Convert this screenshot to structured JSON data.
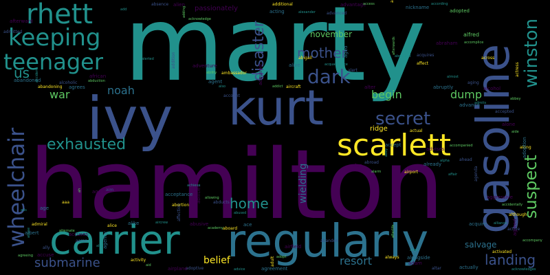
{
  "title": "Word cloud",
  "palette": {
    "background": "#000000",
    "teal": "#21918c",
    "blue": "#3b528b",
    "purple": "#440154",
    "green": "#5ec962",
    "yellow": "#fde725",
    "cyan": "#2c728e"
  },
  "words": [
    {
      "text": "marty"
    },
    {
      "text": "hamilton"
    },
    {
      "text": "ivy"
    },
    {
      "text": "kurt"
    },
    {
      "text": "gasoline"
    },
    {
      "text": "regularly"
    },
    {
      "text": "carrier"
    },
    {
      "text": "scarlett"
    },
    {
      "text": "rhett"
    },
    {
      "text": "keeping"
    },
    {
      "text": "teenager"
    },
    {
      "text": "wheelchair"
    },
    {
      "text": "winston"
    },
    {
      "text": "suspect"
    },
    {
      "text": "exhausted"
    },
    {
      "text": "secret"
    },
    {
      "text": "dark"
    },
    {
      "text": "mother"
    },
    {
      "text": "disaster"
    },
    {
      "text": "landing"
    },
    {
      "text": "submarine"
    },
    {
      "text": "home"
    },
    {
      "text": "us"
    },
    {
      "text": "war"
    },
    {
      "text": "noah"
    },
    {
      "text": "begin"
    },
    {
      "text": "dump"
    },
    {
      "text": "resort"
    },
    {
      "text": "belief"
    },
    {
      "text": "salvage"
    },
    {
      "text": "november"
    },
    {
      "text": "wielding"
    },
    {
      "text": "passionately"
    },
    {
      "text": "ridge"
    },
    {
      "text": "alfred"
    },
    {
      "text": "adopted"
    }
  ],
  "small_words": [
    "add",
    "absence",
    "alien",
    "adding",
    "additional",
    "acting",
    "alexander",
    "advanced",
    "advantage",
    "access",
    "allows",
    "nickname",
    "according",
    "admitted",
    "afterward",
    "acknowledge",
    "abigail",
    "aged",
    "abducted",
    "acquires",
    "abraham",
    "accomplice",
    "across",
    "abandoned",
    "accident",
    "alcoholic",
    "african",
    "abduction",
    "abandoning",
    "agrees",
    "alerted",
    "addition",
    "adventure",
    "ability",
    "ambassador",
    "agent",
    "also",
    "account",
    "acquired",
    "addict",
    "aircraft",
    "alive",
    "acquaintance",
    "alert",
    "alter",
    "afterwards",
    "affect",
    "abruptly",
    "almost",
    "aging",
    "alcohol",
    "abbey",
    "actress",
    "advance",
    "admits",
    "accepted",
    "alone",
    "aide",
    "along",
    "adoption",
    "alpha",
    "ahead",
    "advises",
    "accompanied",
    "actual",
    "accept",
    "abby",
    "abroad",
    "alan",
    "alarm",
    "airport",
    "already",
    "affair",
    "agenda",
    "aggressive",
    "accidentally",
    "although",
    "acquire",
    "alliance",
    "active",
    "agreed",
    "accompany",
    "activated",
    "actually",
    "acknowledges",
    "altar",
    "adam",
    "afterlife",
    "always",
    "alongside",
    "align",
    "abandon",
    "airfield",
    "adopt",
    "adult",
    "agreement",
    "advice",
    "adoptive",
    "airplane",
    "aid",
    "activity",
    "agency",
    "alex",
    "aaron",
    "accuses",
    "alternate",
    "admiral",
    "albert",
    "abuse",
    "ally",
    "accuse",
    "agreeing",
    "alice",
    "alike",
    "aircrew",
    "affection",
    "abusive",
    "academy",
    "aboard",
    "ace",
    "abused",
    "abducts",
    "abilities",
    "allowing",
    "abortion",
    "acceptance",
    "achieve",
    "aim",
    "agents",
    "ah",
    "aaa",
    "age",
    "ads"
  ]
}
